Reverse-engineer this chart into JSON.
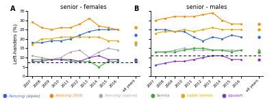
{
  "years": [
    2007,
    2008,
    2009,
    2010,
    2011,
    2012,
    2013,
    2014,
    2015,
    2016
  ],
  "females": {
    "epee": [
      18,
      18,
      19,
      19,
      20,
      22,
      24,
      25,
      25,
      25
    ],
    "foil": [
      29,
      26,
      25,
      26,
      26,
      28,
      31,
      27,
      26,
      25
    ],
    "sabre": [
      11,
      10,
      9,
      10,
      13,
      14,
      10,
      13,
      15,
      14
    ],
    "tennis": [
      9,
      9,
      9,
      9,
      8,
      8,
      8,
      5,
      8,
      8
    ],
    "tabletennis": [
      17,
      20,
      20,
      21,
      21,
      21,
      21,
      21,
      19,
      19
    ],
    "squash": [
      8,
      8,
      9,
      9,
      9,
      8,
      10,
      11,
      9,
      9
    ]
  },
  "females_allyears": {
    "epee": 22,
    "foil": 26,
    "sabre": 17,
    "tennis": 8,
    "tabletennis": 18,
    "squash": 9
  },
  "males": {
    "epee": [
      25,
      25,
      24,
      24,
      21,
      19,
      21,
      20,
      22,
      21
    ],
    "foil": [
      30,
      31,
      32,
      32,
      32,
      33,
      34,
      30,
      28,
      28
    ],
    "sabre": [
      13,
      13,
      14,
      15,
      14,
      14,
      14,
      14,
      14,
      14
    ],
    "tennis": [
      13,
      13,
      13,
      14,
      15,
      15,
      14,
      14,
      13,
      14
    ],
    "tabletennis": [
      23,
      24,
      24,
      25,
      24,
      25,
      26,
      25,
      25,
      25
    ],
    "squash": [
      6,
      7,
      8,
      8,
      9,
      10,
      11,
      11,
      9,
      9
    ]
  },
  "males_allyears": {
    "epee": 21,
    "foil": 28,
    "sabre": 14,
    "tennis": 13,
    "tabletennis": 25,
    "squash": 9
  },
  "colors": {
    "epee": "#3366cc",
    "foil": "#ff8800",
    "sabre": "#aaaaaa",
    "tennis": "#33aa33",
    "tabletennis": "#ddaa00",
    "squash": "#8833cc"
  },
  "dashed_line_females": 7.5,
  "dashed_line_males": 11.0,
  "ylim": [
    0,
    35
  ],
  "yticks": [
    0,
    5,
    10,
    15,
    20,
    25,
    30,
    35
  ],
  "legend": {
    "epee": "fencing (épée)",
    "foil": "fencing (foil)",
    "sabre": "fencing (sabre)",
    "tennis": "tennis",
    "tabletennis": "table tennis",
    "squash": "squash"
  }
}
